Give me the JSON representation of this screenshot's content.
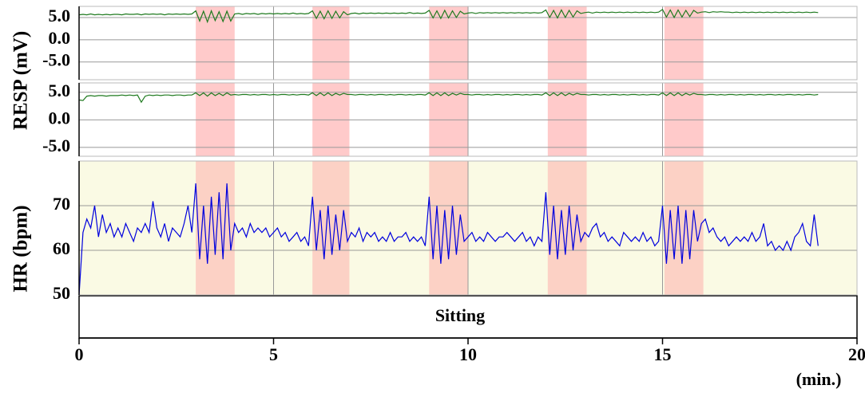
{
  "chart_data": {
    "type": "line",
    "xlim": [
      0,
      20
    ],
    "xticks": [
      0,
      5,
      10,
      15,
      20
    ],
    "xlabel": "(min.)",
    "ylabels": [
      "RESP (mV)",
      "HR (bpm)"
    ],
    "annotation": "Sitting",
    "grid": true,
    "shaded": {
      "color": "#ff9f9f",
      "ranges": [
        [
          3.0,
          4.0
        ],
        [
          6.0,
          6.95
        ],
        [
          9.0,
          10.0
        ],
        [
          12.05,
          13.05
        ],
        [
          15.05,
          16.05
        ]
      ]
    },
    "panels": [
      {
        "ylim": [
          -9,
          7.5
        ],
        "yticks": [
          {
            "value": 5,
            "label": "5.0"
          },
          {
            "value": 0,
            "label": "0.0"
          },
          {
            "value": -5,
            "label": "-5.0"
          }
        ],
        "background": "#ffffff"
      },
      {
        "ylim": [
          -6.6,
          6.7
        ],
        "yticks": [
          {
            "value": 5,
            "label": "5.0"
          },
          {
            "value": 0,
            "label": "0.0"
          },
          {
            "value": -5,
            "label": "-5.0"
          }
        ],
        "background": "#ffffff"
      },
      {
        "ylim": [
          50,
          80
        ],
        "yticks": [
          70,
          60,
          50
        ],
        "background": "#fafae4"
      }
    ],
    "x": [
      0,
      0.1,
      0.2,
      0.3,
      0.4,
      0.5,
      0.6,
      0.7,
      0.8,
      0.9,
      1,
      1.1,
      1.2,
      1.3,
      1.4,
      1.5,
      1.6,
      1.7,
      1.8,
      1.9,
      2,
      2.1,
      2.2,
      2.3,
      2.4,
      2.5,
      2.6,
      2.7,
      2.8,
      2.9,
      3,
      3.1,
      3.2,
      3.3,
      3.4,
      3.5,
      3.6,
      3.7,
      3.8,
      3.9,
      4,
      4.1,
      4.2,
      4.3,
      4.4,
      4.5,
      4.6,
      4.7,
      4.8,
      4.9,
      5,
      5.1,
      5.2,
      5.3,
      5.4,
      5.5,
      5.6,
      5.7,
      5.8,
      5.9,
      6,
      6.1,
      6.2,
      6.3,
      6.4,
      6.5,
      6.6,
      6.7,
      6.8,
      6.9,
      7,
      7.1,
      7.2,
      7.3,
      7.4,
      7.5,
      7.6,
      7.7,
      7.8,
      7.9,
      8,
      8.1,
      8.2,
      8.3,
      8.4,
      8.5,
      8.6,
      8.7,
      8.8,
      8.9,
      9,
      9.1,
      9.2,
      9.3,
      9.4,
      9.5,
      9.6,
      9.7,
      9.8,
      9.9,
      10,
      10.1,
      10.2,
      10.3,
      10.4,
      10.5,
      10.6,
      10.7,
      10.8,
      10.9,
      11,
      11.1,
      11.2,
      11.3,
      11.4,
      11.5,
      11.6,
      11.7,
      11.8,
      11.9,
      12,
      12.1,
      12.2,
      12.3,
      12.4,
      12.5,
      12.6,
      12.7,
      12.8,
      12.9,
      13,
      13.1,
      13.2,
      13.3,
      13.4,
      13.5,
      13.6,
      13.7,
      13.8,
      13.9,
      14,
      14.1,
      14.2,
      14.3,
      14.4,
      14.5,
      14.6,
      14.7,
      14.8,
      14.9,
      15,
      15.1,
      15.2,
      15.3,
      15.4,
      15.5,
      15.6,
      15.7,
      15.8,
      15.9,
      16,
      16.1,
      16.2,
      16.3,
      16.4,
      16.5,
      16.6,
      16.7,
      16.8,
      16.9,
      17,
      17.1,
      17.2,
      17.3,
      17.4,
      17.5,
      17.6,
      17.7,
      17.8,
      17.9,
      18,
      18.1,
      18.2,
      18.3,
      18.4,
      18.5,
      18.6,
      18.7,
      18.8,
      18.9,
      19
    ],
    "series": [
      {
        "panel": 0,
        "color": "#1f7a1f",
        "values": [
          5.6,
          5.7,
          5.6,
          5.8,
          5.6,
          5.7,
          5.6,
          5.7,
          5.6,
          5.7,
          5.7,
          5.6,
          5.8,
          5.7,
          5.7,
          5.8,
          5.6,
          5.8,
          5.7,
          5.8,
          5.7,
          5.8,
          5.6,
          5.8,
          5.7,
          5.8,
          5.7,
          5.8,
          5.7,
          5.8,
          6.5,
          4.2,
          6.4,
          4.0,
          6.5,
          4.3,
          6.3,
          4.1,
          6.4,
          4.2,
          5.8,
          5.9,
          5.7,
          5.9,
          5.8,
          5.9,
          5.7,
          5.9,
          5.8,
          5.9,
          5.8,
          5.9,
          5.8,
          5.9,
          5.8,
          6.0,
          5.8,
          5.9,
          5.8,
          5.9,
          6.5,
          4.8,
          6.4,
          4.7,
          6.5,
          4.8,
          6.4,
          4.9,
          6.3,
          5.6,
          5.9,
          6.0,
          5.8,
          6.0,
          5.9,
          6.0,
          5.9,
          6.0,
          5.9,
          6.0,
          5.9,
          6.0,
          5.9,
          6.0,
          5.9,
          6.1,
          5.9,
          6.0,
          5.9,
          6.0,
          6.6,
          4.9,
          6.5,
          4.8,
          6.6,
          4.9,
          6.5,
          5.0,
          6.4,
          5.8,
          6.0,
          6.1,
          5.9,
          6.1,
          6.0,
          6.1,
          6.0,
          6.1,
          6.0,
          6.1,
          6.0,
          6.1,
          6.0,
          6.1,
          6.0,
          6.1,
          6.0,
          6.1,
          6.0,
          6.1,
          6.7,
          5.0,
          6.6,
          4.9,
          6.7,
          5.0,
          6.6,
          5.1,
          6.5,
          5.9,
          6.1,
          6.2,
          6.0,
          6.2,
          6.1,
          6.2,
          6.1,
          6.2,
          6.1,
          6.2,
          6.1,
          6.2,
          6.1,
          6.2,
          6.1,
          6.2,
          6.1,
          6.2,
          6.1,
          6.2,
          6.8,
          5.1,
          6.7,
          5.0,
          6.7,
          5.1,
          6.6,
          5.2,
          6.6,
          6.0,
          6.2,
          6.3,
          6.1,
          6.3,
          6.2,
          6.3,
          6.2,
          6.2,
          6.1,
          6.2,
          6.1,
          6.2,
          6.1,
          6.2,
          6.1,
          6.2,
          6.1,
          6.2,
          6.1,
          6.2,
          6.1,
          6.2,
          6.1,
          6.2,
          6.1,
          6.2,
          6.1,
          6.2,
          6.1,
          6.2,
          6.1
        ]
      },
      {
        "panel": 1,
        "color": "#1f7a1f",
        "values": [
          3.6,
          3.5,
          4.3,
          4.4,
          4.3,
          4.4,
          4.4,
          4.3,
          4.4,
          4.4,
          4.4,
          4.5,
          4.4,
          4.5,
          4.4,
          4.5,
          3.2,
          4.3,
          4.5,
          4.4,
          4.5,
          4.4,
          4.5,
          4.5,
          4.4,
          4.5,
          4.5,
          4.4,
          4.5,
          4.5,
          4.9,
          4.4,
          4.9,
          4.3,
          4.9,
          4.4,
          4.8,
          4.4,
          4.9,
          4.5,
          4.6,
          4.5,
          4.6,
          4.6,
          4.5,
          4.6,
          4.5,
          4.6,
          4.6,
          4.5,
          4.6,
          4.5,
          4.6,
          4.6,
          4.5,
          4.6,
          4.5,
          4.6,
          4.6,
          4.5,
          4.9,
          4.4,
          4.9,
          4.4,
          4.9,
          4.4,
          4.8,
          4.5,
          4.8,
          4.6,
          4.6,
          4.5,
          4.6,
          4.6,
          4.5,
          4.6,
          4.5,
          4.6,
          4.6,
          4.5,
          4.6,
          4.5,
          4.6,
          4.6,
          4.5,
          4.6,
          4.5,
          4.6,
          4.6,
          4.5,
          4.9,
          4.4,
          4.9,
          4.4,
          4.9,
          4.4,
          4.8,
          4.5,
          4.8,
          4.6,
          4.6,
          4.5,
          4.6,
          4.6,
          4.5,
          4.6,
          4.5,
          4.6,
          4.6,
          4.5,
          4.6,
          4.5,
          4.6,
          4.6,
          4.5,
          4.6,
          4.5,
          4.6,
          4.6,
          4.5,
          4.9,
          4.4,
          4.9,
          4.4,
          4.9,
          4.4,
          4.8,
          4.5,
          4.8,
          4.6,
          4.6,
          4.5,
          4.6,
          4.6,
          4.5,
          4.6,
          4.5,
          4.6,
          4.6,
          4.5,
          4.6,
          4.5,
          4.6,
          4.6,
          4.5,
          4.6,
          4.5,
          4.6,
          4.6,
          4.5,
          4.9,
          4.4,
          4.9,
          4.4,
          4.9,
          4.4,
          4.8,
          4.5,
          4.8,
          4.6,
          4.6,
          4.5,
          4.6,
          4.6,
          4.5,
          4.6,
          4.5,
          4.6,
          4.6,
          4.5,
          4.6,
          4.5,
          4.6,
          4.6,
          4.5,
          4.6,
          4.5,
          4.6,
          4.6,
          4.5,
          4.6,
          4.5,
          4.6,
          4.6,
          4.5,
          4.6,
          4.5,
          4.6,
          4.6,
          4.5,
          4.6
        ]
      },
      {
        "panel": 2,
        "color": "#0000dd",
        "values": [
          50,
          64,
          67,
          65,
          70,
          63,
          68,
          64,
          66,
          63,
          65,
          63,
          66,
          64,
          62,
          65,
          64,
          66,
          64,
          71,
          65,
          63,
          66,
          62,
          65,
          64,
          63,
          66,
          70,
          64,
          75,
          58,
          70,
          57,
          72,
          59,
          73,
          58,
          75,
          60,
          66,
          64,
          65,
          63,
          66,
          64,
          65,
          64,
          65,
          63,
          64,
          65,
          63,
          64,
          62,
          63,
          64,
          62,
          63,
          61,
          72,
          60,
          69,
          58,
          70,
          59,
          68,
          60,
          69,
          62,
          64,
          63,
          65,
          62,
          64,
          63,
          64,
          62,
          63,
          62,
          64,
          62,
          63,
          63,
          64,
          62,
          63,
          62,
          63,
          61,
          72,
          58,
          70,
          57,
          69,
          58,
          70,
          59,
          68,
          62,
          63,
          64,
          62,
          63,
          62,
          64,
          63,
          62,
          63,
          63,
          64,
          63,
          62,
          63,
          64,
          62,
          63,
          61,
          63,
          62,
          73,
          59,
          70,
          58,
          69,
          59,
          70,
          60,
          68,
          62,
          64,
          63,
          65,
          66,
          63,
          64,
          62,
          63,
          62,
          61,
          64,
          63,
          62,
          63,
          62,
          64,
          62,
          63,
          61,
          62,
          70,
          57,
          69,
          58,
          70,
          57,
          69,
          58,
          69,
          62,
          66,
          67,
          64,
          65,
          63,
          62,
          63,
          61,
          62,
          63,
          62,
          63,
          62,
          64,
          62,
          63,
          66,
          61,
          62,
          60,
          61,
          60,
          62,
          60,
          63,
          64,
          66,
          62,
          61,
          68,
          61
        ]
      }
    ]
  }
}
